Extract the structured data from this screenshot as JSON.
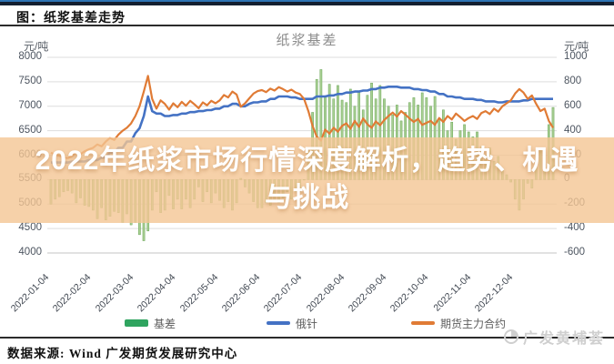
{
  "page": {
    "figure_label": "图：纸浆基差走势",
    "source_note": "数据来源: Wind  广发期货发展研究中心",
    "watermark": "广发黄埔荟",
    "overlay": {
      "line1": "2022年纸浆市场行情深度解析，趋势、机遇",
      "line2": "与挑战"
    }
  },
  "colors": {
    "top_accent": "#2e74b5",
    "bar_fill": "#a8cf92",
    "bar_stroke": "#6ba65a",
    "line_blue": "#4472c4",
    "line_orange": "#e07b35",
    "legend_green": "#2fa45f",
    "gridline": "#dddddd",
    "overlay_band": "rgba(244,197,148,0.8)"
  },
  "chart_data": {
    "type": "bar",
    "subtype": "bar-line-combo",
    "title": "纸浆基差",
    "grid": true,
    "legend_position": "bottom",
    "n_points": 120,
    "left_axis": {
      "unit": "元/吨",
      "min": 4000,
      "max": 8000,
      "step": 500,
      "ticks": [
        8000,
        7500,
        7000,
        6500,
        6000,
        5500,
        5000,
        4500,
        4000
      ]
    },
    "right_axis": {
      "unit": "元/吨",
      "min": -600,
      "max": 1000,
      "step": 200,
      "ticks": [
        1000,
        800,
        600,
        400,
        200,
        0,
        -200,
        -400,
        -600
      ]
    },
    "x_tick_labels": [
      "2022-01-04",
      "2022-02-04",
      "2022-03-04",
      "2022-04-04",
      "2022-05-04",
      "2022-06-04",
      "2022-07-04",
      "2022-08-04",
      "2022-09-04",
      "2022-10-04",
      "2022-11-04",
      "2022-12-04"
    ],
    "legend": [
      {
        "label": "基差",
        "type": "bar",
        "color": "#2fa45f"
      },
      {
        "label": "俄针",
        "type": "line",
        "color": "#4472c4"
      },
      {
        "label": "期货主力合约",
        "type": "line",
        "color": "#e07b35"
      }
    ],
    "series": [
      {
        "name": "基差",
        "axis": "right",
        "type": "bar",
        "fill": "#a8cf92",
        "color": "#6ba65a",
        "values": [
          -200,
          -160,
          -140,
          -100,
          -90,
          -110,
          -190,
          -150,
          -210,
          -220,
          -250,
          -320,
          -230,
          -330,
          -300,
          -260,
          -270,
          -350,
          -280,
          -370,
          -350,
          -450,
          -500,
          -420,
          -250,
          -100,
          -270,
          -250,
          -130,
          -240,
          -160,
          -240,
          -160,
          -230,
          -160,
          -60,
          -180,
          -100,
          -190,
          -110,
          -170,
          -230,
          -180,
          -250,
          -190,
          10,
          -60,
          -110,
          -180,
          -230,
          -230,
          -190,
          -210,
          -170,
          -190,
          -150,
          -100,
          -160,
          -100,
          -100,
          0,
          250,
          550,
          820,
          900,
          680,
          780,
          660,
          770,
          650,
          630,
          740,
          600,
          720,
          570,
          690,
          790,
          660,
          770,
          660,
          600,
          530,
          610,
          480,
          550,
          630,
          670,
          610,
          710,
          670,
          600,
          680,
          490,
          570,
          400,
          470,
          330,
          400,
          450,
          390,
          350,
          390,
          270,
          200,
          260,
          150,
          190,
          80,
          40,
          -20,
          -160,
          -250,
          -160,
          -30,
          -70,
          100,
          250,
          200,
          450,
          590
        ]
      },
      {
        "name": "俄针",
        "axis": "left",
        "type": "line",
        "color": "#4472c4",
        "values": [
          5850,
          5850,
          5850,
          5850,
          5850,
          5870,
          5870,
          5870,
          5870,
          5900,
          5900,
          5900,
          5950,
          5950,
          6050,
          6050,
          6150,
          6150,
          6280,
          6280,
          6450,
          6550,
          6800,
          7200,
          6900,
          6850,
          6850,
          6800,
          6800,
          6820,
          6820,
          6850,
          6850,
          6880,
          6880,
          6900,
          6900,
          6920,
          6920,
          6950,
          6950,
          7000,
          7000,
          7050,
          7050,
          7000,
          7000,
          7050,
          7080,
          7080,
          7100,
          7100,
          7150,
          7150,
          7200,
          7200,
          7200,
          7180,
          7180,
          7150,
          7150,
          7150,
          7150,
          7200,
          7200,
          7200,
          7220,
          7220,
          7250,
          7250,
          7280,
          7280,
          7300,
          7300,
          7320,
          7320,
          7350,
          7350,
          7380,
          7380,
          7400,
          7400,
          7400,
          7380,
          7380,
          7380,
          7350,
          7350,
          7330,
          7330,
          7300,
          7300,
          7250,
          7250,
          7200,
          7200,
          7180,
          7180,
          7150,
          7150,
          7150,
          7130,
          7130,
          7100,
          7100,
          7100,
          7080,
          7080,
          7100,
          7100,
          7100,
          7100,
          7120,
          7120,
          7150,
          7150,
          7150,
          7150,
          7150,
          7150
        ]
      },
      {
        "name": "期货主力合约",
        "axis": "left",
        "type": "line",
        "color": "#e07b35",
        "values": [
          6050,
          6010,
          5990,
          5950,
          5940,
          5980,
          6060,
          6020,
          6080,
          6120,
          6150,
          6220,
          6180,
          6280,
          6350,
          6310,
          6420,
          6500,
          6560,
          6650,
          6800,
          7000,
          7300,
          7620,
          7150,
          6950,
          7120,
          7050,
          6930,
          7060,
          6980,
          7090,
          7010,
          7110,
          7040,
          6960,
          7080,
          7020,
          7110,
          7060,
          7120,
          7230,
          7180,
          7300,
          7240,
          6990,
          7060,
          7160,
          7260,
          7310,
          7330,
          7290,
          7360,
          7320,
          7390,
          7350,
          7300,
          7340,
          7280,
          7250,
          7150,
          6900,
          6600,
          6380,
          6300,
          6520,
          6440,
          6560,
          6480,
          6600,
          6650,
          6540,
          6700,
          6580,
          6750,
          6630,
          6560,
          6690,
          6610,
          6720,
          6800,
          6870,
          6790,
          6900,
          6830,
          6750,
          6680,
          6740,
          6620,
          6660,
          6700,
          6620,
          6760,
          6680,
          6800,
          6730,
          6850,
          6780,
          6700,
          6760,
          6800,
          6740,
          6860,
          6900,
          6840,
          6950,
          6890,
          7000,
          7060,
          7120,
          7260,
          7350,
          7280,
          7150,
          7220,
          7050,
          6900,
          6950,
          6700,
          6560
        ]
      }
    ]
  }
}
